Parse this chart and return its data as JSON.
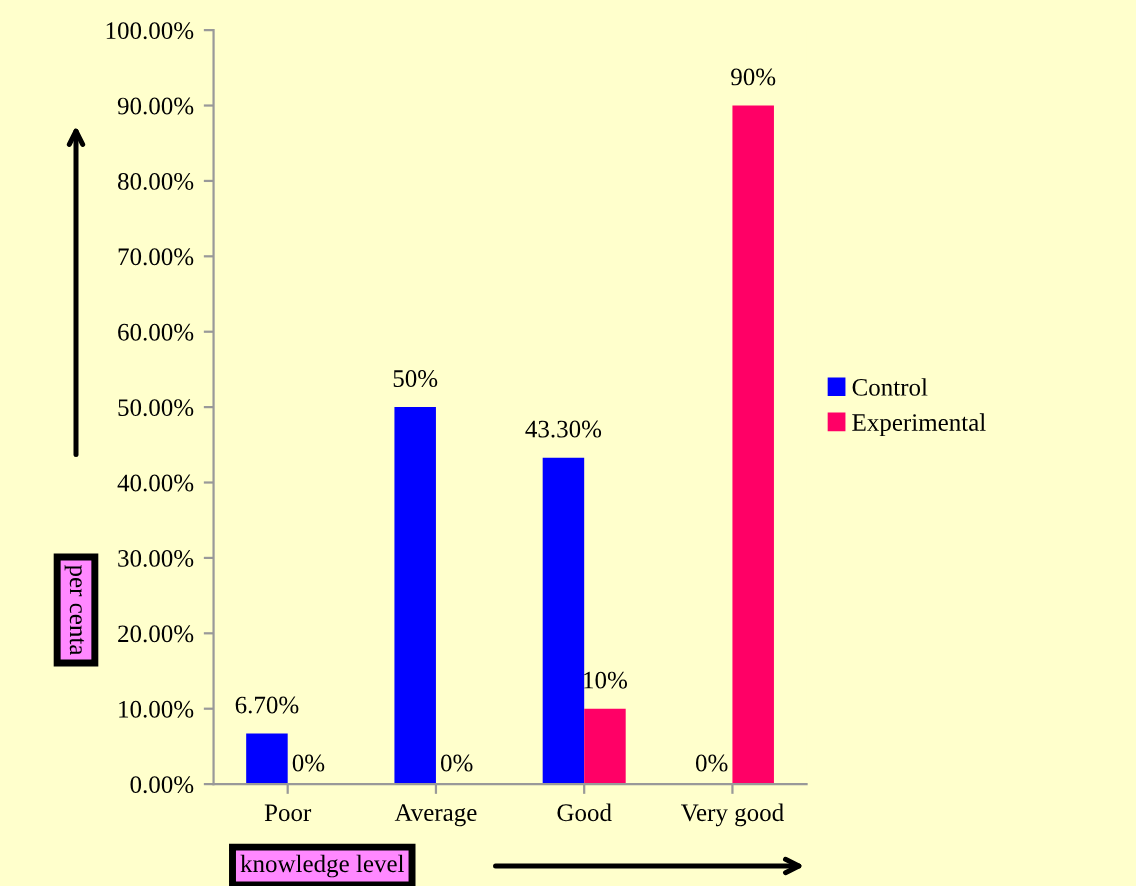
{
  "chart_data": {
    "type": "bar",
    "xlabel": "knowledge level",
    "ylabel": "per centa",
    "categories": [
      "Poor",
      "Average",
      "Good",
      "Very good"
    ],
    "series": [
      {
        "name": "Control",
        "color": "#0000ff",
        "values": [
          6.7,
          50,
          43.3,
          0
        ],
        "value_labels": [
          "6.70%",
          "50%",
          "43.30%",
          "0%"
        ]
      },
      {
        "name": "Experimental",
        "color": "#ff0066",
        "values": [
          0,
          0,
          10,
          90
        ],
        "value_labels": [
          "0%",
          "0%",
          "10%",
          "90%"
        ]
      }
    ],
    "ylim": [
      0,
      100
    ],
    "yticks": [
      {
        "value": 0,
        "label": "0.00%"
      },
      {
        "value": 10,
        "label": "10.00%"
      },
      {
        "value": 20,
        "label": "20.00%"
      },
      {
        "value": 30,
        "label": "30.00%"
      },
      {
        "value": 40,
        "label": "40.00%"
      },
      {
        "value": 50,
        "label": "50.00%"
      },
      {
        "value": 60,
        "label": "60.00%"
      },
      {
        "value": 70,
        "label": "70.00%"
      },
      {
        "value": 80,
        "label": "80.00%"
      },
      {
        "value": 90,
        "label": "90.00%"
      },
      {
        "value": 100,
        "label": "100.00%"
      }
    ],
    "legend": "right",
    "grid": false
  }
}
